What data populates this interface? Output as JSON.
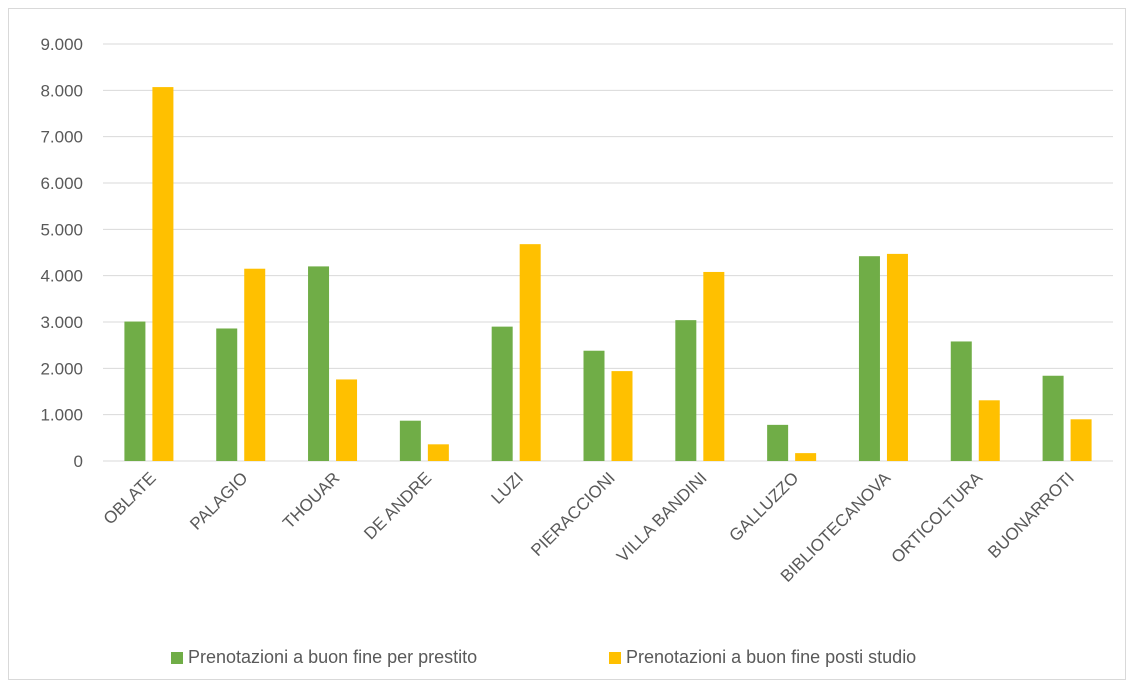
{
  "chart_data": {
    "type": "bar",
    "categories": [
      "OBLATE",
      "PALAGIO",
      "THOUAR",
      "DE ANDRE",
      "LUZI",
      "PIERACCIONI",
      "VILLA BANDINI",
      "GALLUZZO",
      "BIBLIOTECANOVA",
      "ORTICOLTURA",
      "BUONARROTI"
    ],
    "series": [
      {
        "name": "Prenotazioni a buon fine per prestito",
        "color": "#70ad47",
        "values": [
          3010,
          2860,
          4200,
          870,
          2900,
          2380,
          3040,
          780,
          4420,
          2580,
          1840
        ]
      },
      {
        "name": "Prenotazioni  a buon fine posti studio",
        "color": "#ffc000",
        "values": [
          8070,
          4150,
          1760,
          360,
          4680,
          1940,
          4080,
          170,
          4470,
          1310,
          900
        ]
      }
    ],
    "ylim": [
      0,
      9000
    ],
    "yticks": [
      "0",
      "1.000",
      "2.000",
      "3.000",
      "4.000",
      "5.000",
      "6.000",
      "7.000",
      "8.000",
      "9.000"
    ],
    "grid": true,
    "legend": "bottom",
    "gridColor": "#d9d9d9"
  }
}
